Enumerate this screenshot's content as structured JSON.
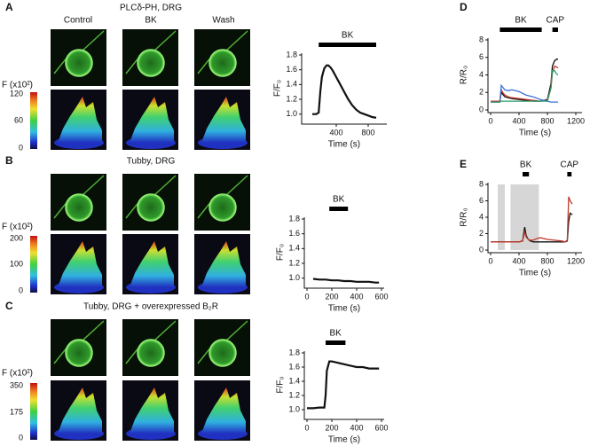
{
  "panels": [
    {
      "label": "A",
      "title": "PLCδ-PH, DRG",
      "colorbar_label": "F (x10²)",
      "colorbar_ticks": [
        120,
        60,
        0
      ]
    },
    {
      "label": "B",
      "title": "Tubby, DRG",
      "colorbar_label": "F (x10²)",
      "colorbar_ticks": [
        200,
        100,
        0
      ]
    },
    {
      "label": "C",
      "title": "Tubby, DRG + overexpressed B₂R",
      "colorbar_label": "F (x10²)",
      "colorbar_ticks": [
        350,
        175,
        0
      ]
    }
  ],
  "columns": [
    "Control",
    "BK",
    "Wash"
  ],
  "side_panels": [
    "D",
    "E"
  ],
  "chart_data": [
    {
      "type": "line",
      "ylabel": "F/F₀",
      "xlabel": "Time (s)",
      "x": [
        100,
        150,
        180,
        200,
        220,
        250,
        280,
        300,
        330,
        360,
        400,
        450,
        500,
        550,
        600,
        650,
        700,
        750,
        800,
        850,
        900
      ],
      "series": [
        {
          "color": "#111111",
          "values": [
            1.0,
            1.0,
            1.02,
            1.3,
            1.5,
            1.62,
            1.66,
            1.66,
            1.63,
            1.58,
            1.5,
            1.4,
            1.3,
            1.2,
            1.12,
            1.06,
            1.02,
            1.0,
            0.98,
            0.96,
            0.95
          ]
        }
      ],
      "xlim": [
        0,
        1000
      ],
      "xticks": [
        400,
        800
      ],
      "ylim": [
        0.9,
        1.8
      ],
      "yticks": [
        {
          "value": 1.0,
          "label": "1.0"
        },
        1.2,
        1.4,
        1.6,
        1.8
      ],
      "bands": [
        {
          "label": "BK",
          "start": 180,
          "end": 900
        }
      ]
    },
    {
      "type": "line",
      "ylabel": "F/F₀",
      "xlabel": "Time (s)",
      "x": [
        50,
        100,
        150,
        200,
        250,
        300,
        350,
        400,
        450,
        500,
        550,
        580
      ],
      "series": [
        {
          "color": "#111111",
          "values": [
            0.99,
            0.98,
            0.98,
            0.97,
            0.97,
            0.96,
            0.96,
            0.95,
            0.95,
            0.95,
            0.94,
            0.94
          ]
        }
      ],
      "xlim": [
        0,
        600
      ],
      "xticks": [
        0,
        200,
        400,
        600
      ],
      "ylim": [
        0.9,
        1.8
      ],
      "yticks": [
        {
          "value": 1.0,
          "label": "1.0"
        },
        1.2,
        1.4,
        1.6,
        1.8
      ],
      "bands": [
        {
          "label": "BK",
          "start": 180,
          "end": 330
        }
      ]
    },
    {
      "type": "line",
      "ylabel": "F/F₀",
      "xlabel": "Time (s)",
      "x": [
        0,
        50,
        100,
        140,
        150,
        160,
        180,
        200,
        250,
        300,
        350,
        400,
        450,
        500,
        550,
        580
      ],
      "series": [
        {
          "color": "#111111",
          "values": [
            1.02,
            1.02,
            1.03,
            1.03,
            1.2,
            1.55,
            1.68,
            1.68,
            1.66,
            1.64,
            1.62,
            1.6,
            1.6,
            1.58,
            1.58,
            1.58
          ]
        }
      ],
      "xlim": [
        0,
        600
      ],
      "xticks": [
        0,
        200,
        400,
        600
      ],
      "ylim": [
        0.9,
        1.8
      ],
      "yticks": [
        {
          "value": 1.0,
          "label": "1.0"
        },
        1.2,
        1.4,
        1.6,
        1.8
      ],
      "bands": [
        {
          "label": "BK",
          "start": 150,
          "end": 310
        }
      ]
    },
    {
      "type": "line",
      "ylabel": "R/R₀",
      "xlabel": "Time (s)",
      "x": [
        0,
        100,
        130,
        150,
        170,
        200,
        250,
        300,
        400,
        500,
        600,
        700,
        800,
        850,
        870,
        900,
        930,
        950
      ],
      "series": [
        {
          "color": "#111111",
          "values": [
            1,
            1,
            1,
            2.0,
            1.8,
            1.5,
            1.4,
            1.3,
            1.2,
            1.1,
            1.0,
            1.0,
            1.2,
            3,
            5,
            5.6,
            5.8,
            5.8
          ]
        },
        {
          "color": "#c0392b",
          "values": [
            1,
            1,
            1,
            2.3,
            2.0,
            1.7,
            1.5,
            1.4,
            1.3,
            1.2,
            1.1,
            1.0,
            1.1,
            2.5,
            4.2,
            5.0,
            4.9,
            4.8
          ]
        },
        {
          "color": "#3a6fd8",
          "values": [
            0.9,
            0.9,
            0.9,
            2.8,
            2.6,
            2.3,
            2.2,
            2.3,
            2.1,
            1.7,
            1.5,
            1.2,
            1.0,
            0.9,
            0.9,
            0.9,
            0.9,
            0.9
          ]
        },
        {
          "color": "#2e9c6a",
          "values": [
            0.9,
            0.9,
            0.9,
            1.0,
            1.0,
            1.0,
            1.0,
            1.0,
            1.0,
            1.0,
            1.0,
            1.0,
            1.0,
            2.5,
            4.5,
            4.5,
            4.1,
            4.0
          ]
        }
      ],
      "xlim": [
        0,
        1250
      ],
      "xticks": [
        0,
        400,
        800,
        1200
      ],
      "ylim": [
        0,
        8
      ],
      "yticks": [
        0,
        2,
        4,
        6,
        8
      ],
      "bands": [
        {
          "label": "BK",
          "start": 130,
          "end": 720
        },
        {
          "label": "CAP",
          "start": 870,
          "end": 950
        }
      ]
    },
    {
      "type": "line",
      "ylabel": "R/R₀",
      "xlabel": "Time (s)",
      "x": [
        0,
        100,
        200,
        300,
        400,
        450,
        480,
        500,
        530,
        560,
        600,
        650,
        700,
        800,
        900,
        1000,
        1050,
        1080,
        1100,
        1120,
        1150
      ],
      "series": [
        {
          "color": "#111111",
          "values": [
            1,
            1,
            1,
            1,
            1,
            1.1,
            2.8,
            1.8,
            1.3,
            1.1,
            1.0,
            1.0,
            1.0,
            1.0,
            1.0,
            1.0,
            1.0,
            1.1,
            3.5,
            4.5,
            4.3
          ]
        },
        {
          "color": "#c0392b",
          "values": [
            1,
            1,
            1,
            1,
            1,
            1.1,
            2.2,
            1.6,
            1.3,
            1.2,
            1.2,
            1.4,
            1.5,
            1.3,
            1.2,
            1.1,
            1.0,
            1.2,
            6.5,
            6.0,
            5.6
          ]
        }
      ],
      "xlim": [
        0,
        1250
      ],
      "xticks": [
        0,
        400,
        800,
        1200
      ],
      "ylim": [
        0,
        8
      ],
      "yticks": [
        0,
        2,
        4,
        6,
        8
      ],
      "shaded": [
        [
          100,
          200
        ],
        [
          280,
          680
        ]
      ],
      "bands": [
        {
          "label": "BK",
          "start": 450,
          "end": 540
        },
        {
          "label": "CAP",
          "start": 1080,
          "end": 1140
        }
      ]
    }
  ]
}
